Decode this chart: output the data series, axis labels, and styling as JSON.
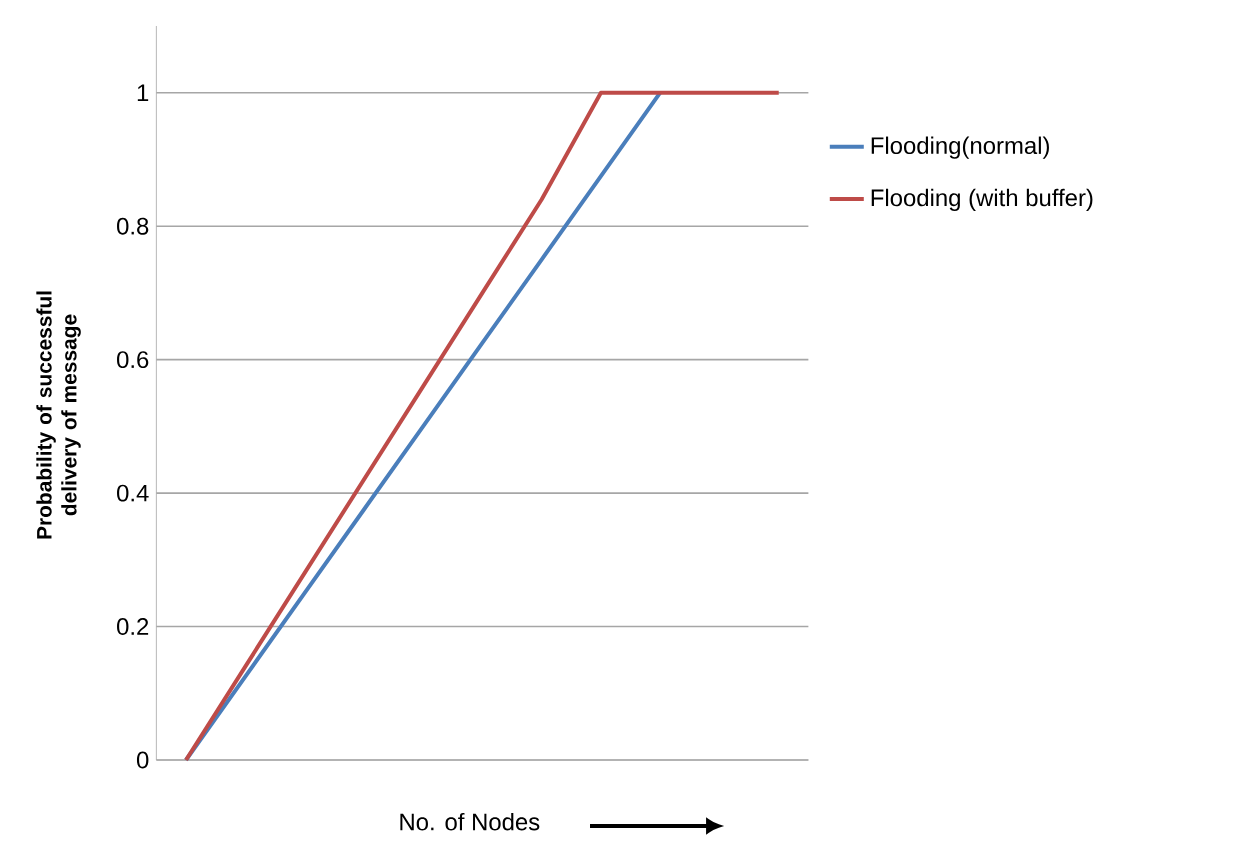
{
  "chart_data": {
    "type": "line",
    "xlabel": "No. of Nodes",
    "ylabel": "Probability of successful delivery of message",
    "categories": [
      null,
      null,
      null,
      null,
      null,
      null,
      null,
      null,
      null,
      null,
      null
    ],
    "series": [
      {
        "name": "Flooding(normal)",
        "color": "#4a7ebb",
        "values": [
          0,
          0.125,
          0.25,
          0.375,
          0.5,
          0.625,
          0.75,
          0.875,
          1,
          null,
          null
        ]
      },
      {
        "name": "Flooding (with buffer)",
        "color": "#be4b48",
        "values": [
          0,
          0.14,
          0.28,
          0.42,
          0.56,
          0.7,
          0.84,
          1,
          1,
          1,
          1
        ]
      }
    ],
    "ylim": [
      0,
      1.1
    ],
    "yticks": [
      0,
      0.2,
      0.4,
      0.6,
      0.8,
      1
    ],
    "grid": "y",
    "legend": "right",
    "marker": "none",
    "line_style": "solid"
  }
}
